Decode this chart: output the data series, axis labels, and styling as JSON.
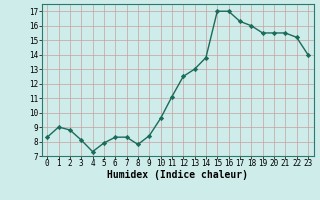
{
  "x": [
    0,
    1,
    2,
    3,
    4,
    5,
    6,
    7,
    8,
    9,
    10,
    11,
    12,
    13,
    14,
    15,
    16,
    17,
    18,
    19,
    20,
    21,
    22,
    23
  ],
  "y": [
    8.3,
    9.0,
    8.8,
    8.1,
    7.3,
    7.9,
    8.3,
    8.3,
    7.8,
    8.4,
    9.6,
    11.1,
    12.5,
    13.0,
    13.8,
    17.0,
    17.0,
    16.3,
    16.0,
    15.5,
    15.5,
    15.5,
    15.2,
    14.0
  ],
  "line_color": "#1a6b5a",
  "marker": "D",
  "marker_size": 2.2,
  "xlabel": "Humidex (Indice chaleur)",
  "xlim": [
    -0.5,
    23.5
  ],
  "ylim": [
    7,
    17.5
  ],
  "yticks": [
    7,
    8,
    9,
    10,
    11,
    12,
    13,
    14,
    15,
    16,
    17
  ],
  "xtick_labels": [
    "0",
    "1",
    "2",
    "3",
    "4",
    "5",
    "6",
    "7",
    "8",
    "9",
    "10",
    "11",
    "12",
    "13",
    "14",
    "15",
    "16",
    "17",
    "18",
    "19",
    "20",
    "21",
    "22",
    "23"
  ],
  "bg_color": "#ceecea",
  "grid_color_major": "#c8a0a0",
  "grid_color_minor": "#c8a0a0",
  "tick_fontsize": 5.5,
  "xlabel_fontsize": 7,
  "linewidth": 1.0
}
